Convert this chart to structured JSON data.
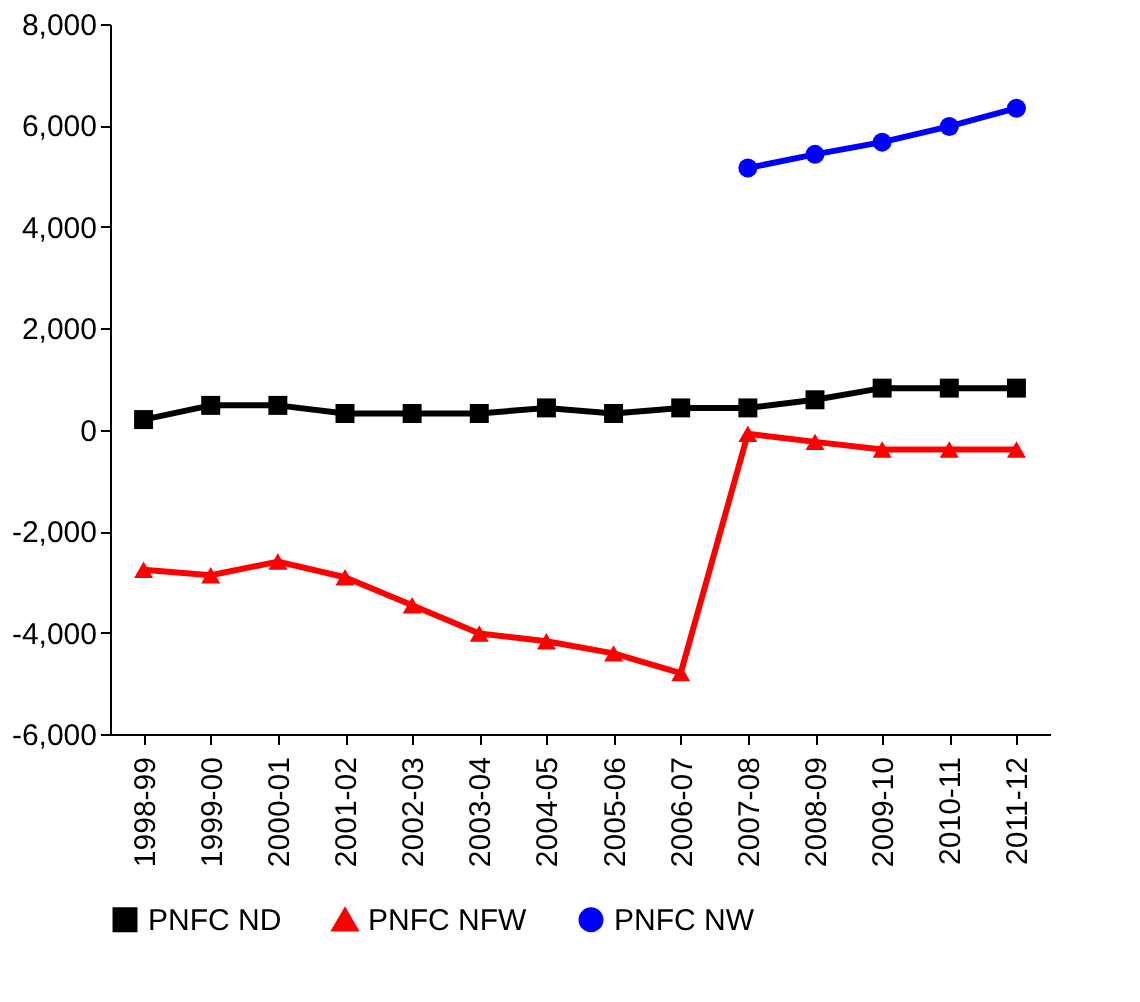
{
  "chart_data": {
    "type": "line",
    "categories": [
      "1998-99",
      "1999-00",
      "2000-01",
      "2001-02",
      "2002-03",
      "2003-04",
      "2004-05",
      "2005-06",
      "2006-07",
      "2007-08",
      "2008-09",
      "2009-10",
      "2010-11",
      "2011-12"
    ],
    "series": [
      {
        "name": "PNFC ND",
        "color": "#000000",
        "marker": "square",
        "values": [
          200,
          480,
          480,
          320,
          320,
          320,
          430,
          320,
          430,
          430,
          590,
          820,
          820,
          820
        ]
      },
      {
        "name": "PNFC NFW",
        "color": "#ff0000",
        "marker": "triangle",
        "values": [
          -2760,
          -2870,
          -2600,
          -2910,
          -3460,
          -4020,
          -4170,
          -4410,
          -4800,
          -80,
          -240,
          -390,
          -390,
          -390
        ]
      },
      {
        "name": "PNFC NW",
        "color": "#0000ff",
        "marker": "circle",
        "values": [
          null,
          null,
          null,
          null,
          null,
          null,
          null,
          null,
          null,
          5160,
          5430,
          5670,
          5980,
          6340
        ]
      }
    ],
    "ylim": [
      -6000,
      8000
    ],
    "yticks": [
      {
        "value": -6000,
        "label": "-6,000"
      },
      {
        "value": -4000,
        "label": "-4,000"
      },
      {
        "value": -2000,
        "label": "-2,000"
      },
      0,
      {
        "value": 2000,
        "label": "2,000"
      },
      {
        "value": 4000,
        "label": "4,000"
      },
      {
        "value": 6000,
        "label": "6,000"
      },
      {
        "value": 8000,
        "label": "8,000"
      }
    ],
    "grid": false,
    "legend": "bottom",
    "line_style": "solid"
  }
}
